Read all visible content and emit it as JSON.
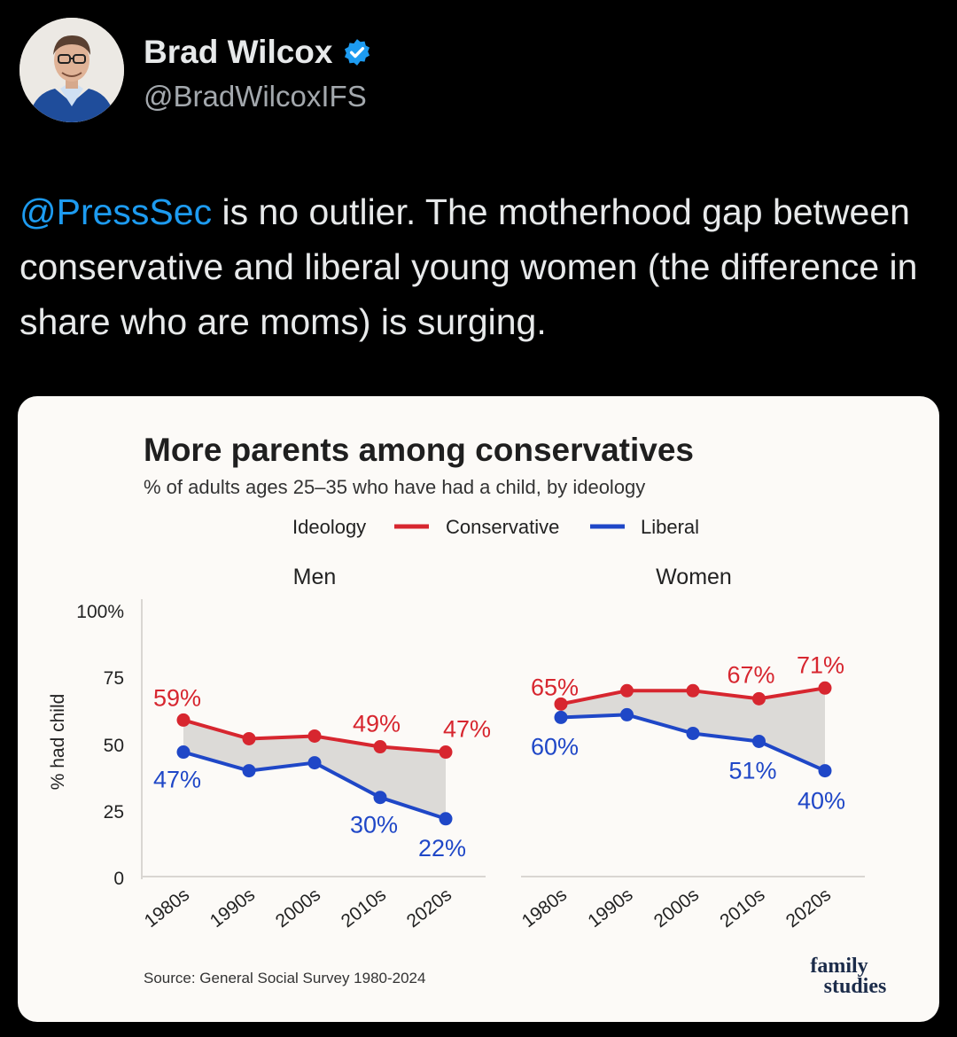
{
  "user": {
    "display_name": "Brad Wilcox",
    "handle": "@BradWilcoxIFS",
    "verified": true,
    "verified_color": "#1d9bf0"
  },
  "tweet": {
    "mention": "@PressSec",
    "text": " is no outlier. The motherhood gap between conservative and liberal young women (the difference in share who are moms) is surging."
  },
  "colors": {
    "conservative": "#d7262f",
    "liberal": "#1f47c7",
    "gap_fill": "#dcdad7",
    "background": "#000000",
    "card": "#fcfaf7"
  },
  "chart_data": {
    "type": "line",
    "title": "More parents among conservatives",
    "subtitle": "% of adults ages 25–35 who have had a child, by ideology",
    "legend": {
      "title": "Ideology",
      "placement": "top-center",
      "items": [
        "Conservative",
        "Liberal"
      ]
    },
    "ylabel": "% had child",
    "ylim": [
      0,
      100
    ],
    "yticks": [
      "100%",
      "75",
      "50",
      "25",
      "0"
    ],
    "categories": [
      "1980s",
      "1990s",
      "2000s",
      "2010s",
      "2020s"
    ],
    "panels": [
      {
        "name": "Men",
        "series": [
          {
            "name": "Conservative",
            "values": [
              59,
              52,
              53,
              49,
              47
            ],
            "labels": [
              "59%",
              "",
              "",
              "49%",
              "47%"
            ]
          },
          {
            "name": "Liberal",
            "values": [
              47,
              40,
              43,
              30,
              22
            ],
            "labels": [
              "47%",
              "",
              "",
              "30%",
              "22%"
            ]
          }
        ]
      },
      {
        "name": "Women",
        "series": [
          {
            "name": "Conservative",
            "values": [
              65,
              70,
              70,
              67,
              71
            ],
            "labels": [
              "65%",
              "",
              "",
              "67%",
              "71%"
            ]
          },
          {
            "name": "Liberal",
            "values": [
              60,
              61,
              54,
              51,
              40
            ],
            "labels": [
              "60%",
              "",
              "",
              "51%",
              "40%"
            ]
          }
        ]
      }
    ],
    "source": "Source: General Social Survey 1980-2024"
  },
  "brand": {
    "logo_line1": "family",
    "logo_line2": "studies"
  }
}
